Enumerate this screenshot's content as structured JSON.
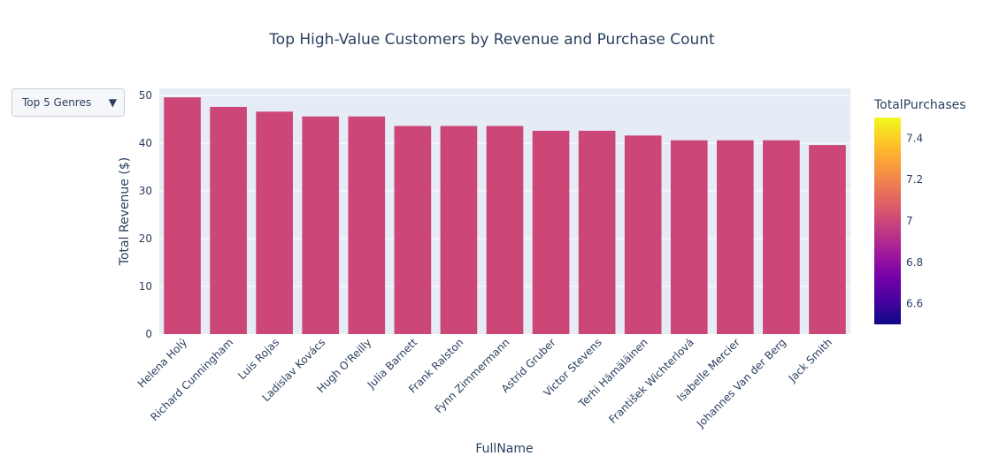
{
  "chart_data": {
    "type": "bar",
    "title": "Top High-Value Customers by Revenue and Purchase Count",
    "xlabel": "FullName",
    "ylabel": "Total Revenue ($)",
    "ylim": [
      0,
      51.5
    ],
    "yticks": [
      0,
      10,
      20,
      30,
      40,
      50
    ],
    "categories": [
      "Helena Holý",
      "Richard Cunningham",
      "Luis Rojas",
      "Ladislav Kovács",
      "Hugh O'Reilly",
      "Julia Barnett",
      "Frank Ralston",
      "Fynn Zimmermann",
      "Astrid Gruber",
      "Victor Stevens",
      "Terhi Hämäläinen",
      "František Wichterlová",
      "Isabelle Mercier",
      "Johannes Van der Berg",
      "Jack Smith"
    ],
    "values": [
      49.62,
      47.62,
      46.62,
      45.62,
      45.62,
      43.62,
      43.62,
      43.62,
      42.62,
      42.62,
      41.62,
      40.62,
      40.62,
      40.62,
      39.62
    ],
    "colorscale": {
      "title": "TotalPurchases",
      "min": 6.5,
      "max": 7.5,
      "ticks": [
        6.6,
        6.8,
        7,
        7.2,
        7.4
      ],
      "bar_value": 7,
      "stops": [
        "#0d0887",
        "#46039f",
        "#7201a8",
        "#9c179e",
        "#bd3786",
        "#d8576b",
        "#ed7953",
        "#fb9f3a",
        "#fdca26",
        "#f0f921"
      ]
    },
    "grid": true,
    "plot_bgcolor": "#e5ecf6",
    "bar_color": "#cc4778"
  },
  "dropdown": {
    "label": "Top 5 Genres",
    "arrow": "▼"
  }
}
